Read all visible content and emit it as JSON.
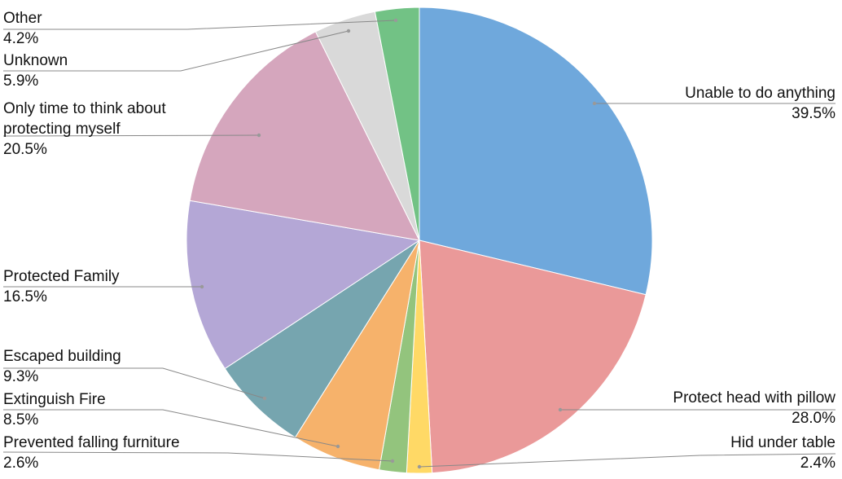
{
  "chart_data": {
    "type": "pie",
    "categories": [
      "Unable to do anything",
      "Protect head with pillow",
      "Hid under table",
      "Prevented falling furniture",
      "Extinguish Fire",
      "Escaped building",
      "Protected Family",
      "Only time to think about protecting myself",
      "Unknown",
      "Other"
    ],
    "values": [
      39.5,
      28.0,
      2.4,
      2.6,
      8.5,
      9.3,
      16.5,
      20.5,
      5.9,
      4.2
    ],
    "value_labels": [
      "39.5%",
      "28.0%",
      "2.4%",
      "2.6%",
      "8.5%",
      "9.3%",
      "16.5%",
      "20.5%",
      "5.9%",
      "4.2%"
    ],
    "colors": [
      "#6fa8dc",
      "#ea9999",
      "#ffd966",
      "#93c47d",
      "#f6b26b",
      "#76a5af",
      "#b4a7d6",
      "#d5a6bd",
      "#d9d9d9",
      "#72c285"
    ]
  }
}
